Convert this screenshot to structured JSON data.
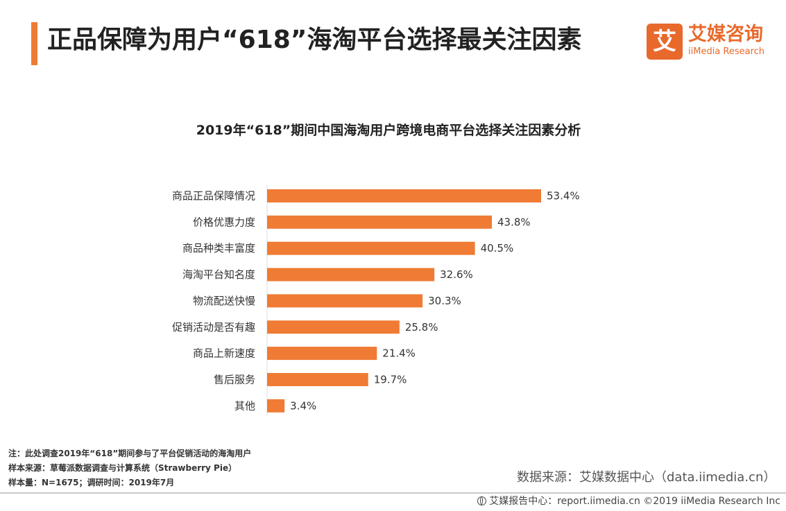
{
  "header": {
    "title": "正品保障为用户“618”海淘平台选择最关注因素",
    "accent_color": "#ef7b34"
  },
  "logo": {
    "mark": "艾",
    "name_cn": "艾媒咨询",
    "name_en": "iiMedia Research",
    "color": "#e8692c"
  },
  "chart_data": {
    "type": "bar",
    "orientation": "horizontal",
    "title": "2019年“618”期间中国海淘用户跨境电商平台选择关注因素分析",
    "categories": [
      "商品正品保障情况",
      "价格优惠力度",
      "商品种类丰富度",
      "海淘平台知名度",
      "物流配送快慢",
      "促销活动是否有趣",
      "商品上新速度",
      "售后服务",
      "其他"
    ],
    "values": [
      53.4,
      43.8,
      40.5,
      32.6,
      30.3,
      25.8,
      21.4,
      19.7,
      3.4
    ],
    "value_labels": [
      "53.4%",
      "43.8%",
      "40.5%",
      "32.6%",
      "30.3%",
      "25.8%",
      "21.4%",
      "19.7%",
      "3.4%"
    ],
    "unit": "%",
    "bar_color": "#ef7b34",
    "grid": false,
    "legend": "none"
  },
  "notes": {
    "line1": "注：此处调查2019年“618”期间参与了平台促销活动的海淘用户",
    "line2": "样本来源：草莓派数据调查与计算系统（Strawberry  Pie）",
    "line3": "样本量：N=1675；调研时间：2019年7月"
  },
  "source": "数据来源：艾媒数据中心（data.iimedia.cn）",
  "footer": {
    "text": "艾媒报告中心：report.iimedia.cn  ©2019  iiMedia Research  Inc"
  }
}
